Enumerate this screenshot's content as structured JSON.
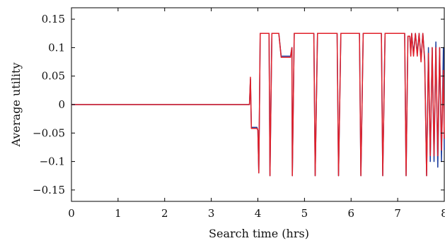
{
  "chart_data": {
    "type": "line",
    "xlabel": "Search time (hrs)",
    "ylabel": "Average utility",
    "xlim": [
      0,
      8
    ],
    "ylim": [
      -0.17,
      0.17
    ],
    "x_ticks": [
      {
        "value": 0,
        "label": "0"
      },
      {
        "value": 1,
        "label": "1"
      },
      {
        "value": 2,
        "label": "2"
      },
      {
        "value": 3,
        "label": "3"
      },
      {
        "value": 4,
        "label": "4"
      },
      {
        "value": 5,
        "label": "5"
      },
      {
        "value": 6,
        "label": "6"
      },
      {
        "value": 7,
        "label": "7"
      },
      {
        "value": 8,
        "label": "8"
      }
    ],
    "y_ticks": [
      {
        "value": 0.15,
        "label": "0.15"
      },
      {
        "value": 0.1,
        "label": "0.1"
      },
      {
        "value": 0.05,
        "label": "0.05"
      },
      {
        "value": 0,
        "label": "0"
      },
      {
        "value": -0.05,
        "label": "−0.05"
      },
      {
        "value": -0.1,
        "label": "−0.1"
      },
      {
        "value": -0.15,
        "label": "−0.15"
      }
    ],
    "grid": false,
    "legend": "none",
    "series": [
      {
        "color": "#1f3f9f",
        "points": [
          [
            0,
            0
          ],
          [
            3.82,
            0
          ],
          [
            3.84,
            0.045
          ],
          [
            3.86,
            -0.04
          ],
          [
            3.98,
            -0.04
          ],
          [
            4.0,
            -0.045
          ],
          [
            4.02,
            -0.12
          ],
          [
            4.05,
            0.125
          ],
          [
            4.24,
            0.125
          ],
          [
            4.26,
            -0.125
          ],
          [
            4.3,
            0.125
          ],
          [
            4.45,
            0.125
          ],
          [
            4.5,
            0.085
          ],
          [
            4.7,
            0.085
          ],
          [
            4.73,
            0.1
          ],
          [
            4.74,
            -0.125
          ],
          [
            4.78,
            0.125
          ],
          [
            5.2,
            0.125
          ],
          [
            5.23,
            -0.125
          ],
          [
            5.28,
            0.125
          ],
          [
            5.7,
            0.125
          ],
          [
            5.73,
            -0.125
          ],
          [
            5.78,
            0.125
          ],
          [
            6.18,
            0.125
          ],
          [
            6.21,
            -0.125
          ],
          [
            6.26,
            0.125
          ],
          [
            6.65,
            0.125
          ],
          [
            6.68,
            -0.125
          ],
          [
            6.73,
            0.125
          ],
          [
            7.15,
            0.125
          ],
          [
            7.18,
            -0.125
          ],
          [
            7.22,
            0.12
          ],
          [
            7.26,
            0.12
          ],
          [
            7.28,
            0.09
          ],
          [
            7.3,
            0.125
          ],
          [
            7.34,
            0.09
          ],
          [
            7.38,
            0.125
          ],
          [
            7.42,
            0.09
          ],
          [
            7.46,
            0.125
          ],
          [
            7.5,
            0.08
          ],
          [
            7.54,
            0.125
          ],
          [
            7.58,
            0.08
          ],
          [
            7.62,
            -0.125
          ],
          [
            7.66,
            0.1
          ],
          [
            7.7,
            -0.1
          ],
          [
            7.74,
            0.1
          ],
          [
            7.78,
            -0.1
          ],
          [
            7.82,
            0.11
          ],
          [
            7.86,
            -0.11
          ],
          [
            7.9,
            0.1
          ],
          [
            7.94,
            -0.1
          ],
          [
            7.98,
            0.1
          ],
          [
            8.0,
            -0.08
          ]
        ]
      },
      {
        "color": "#e0202a",
        "points": [
          [
            0,
            0
          ],
          [
            3.82,
            0
          ],
          [
            3.84,
            0.048
          ],
          [
            3.86,
            -0.042
          ],
          [
            3.98,
            -0.042
          ],
          [
            4.0,
            -0.045
          ],
          [
            4.02,
            -0.12
          ],
          [
            4.05,
            0.125
          ],
          [
            4.24,
            0.125
          ],
          [
            4.26,
            -0.125
          ],
          [
            4.3,
            0.125
          ],
          [
            4.45,
            0.125
          ],
          [
            4.5,
            0.083
          ],
          [
            4.7,
            0.083
          ],
          [
            4.73,
            0.1
          ],
          [
            4.74,
            -0.125
          ],
          [
            4.78,
            0.125
          ],
          [
            5.2,
            0.125
          ],
          [
            5.23,
            -0.125
          ],
          [
            5.28,
            0.125
          ],
          [
            5.7,
            0.125
          ],
          [
            5.73,
            -0.125
          ],
          [
            5.78,
            0.125
          ],
          [
            6.18,
            0.125
          ],
          [
            6.21,
            -0.125
          ],
          [
            6.26,
            0.125
          ],
          [
            6.65,
            0.125
          ],
          [
            6.68,
            -0.125
          ],
          [
            6.73,
            0.125
          ],
          [
            7.15,
            0.125
          ],
          [
            7.18,
            -0.125
          ],
          [
            7.22,
            0.12
          ],
          [
            7.26,
            0.12
          ],
          [
            7.28,
            0.085
          ],
          [
            7.3,
            0.125
          ],
          [
            7.34,
            0.085
          ],
          [
            7.38,
            0.125
          ],
          [
            7.42,
            0.085
          ],
          [
            7.46,
            0.125
          ],
          [
            7.5,
            0.075
          ],
          [
            7.54,
            0.125
          ],
          [
            7.58,
            0.075
          ],
          [
            7.62,
            -0.125
          ],
          [
            7.66,
            0.09
          ],
          [
            7.7,
            -0.09
          ],
          [
            7.74,
            0.1
          ],
          [
            7.78,
            -0.09
          ],
          [
            7.82,
            0.1
          ],
          [
            7.86,
            -0.09
          ],
          [
            7.9,
            0.1
          ],
          [
            7.94,
            -0.08
          ],
          [
            7.98,
            0.06
          ],
          [
            8.0,
            -0.06
          ]
        ]
      }
    ]
  }
}
